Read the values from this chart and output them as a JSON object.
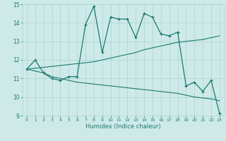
{
  "xlabel": "Humidex (Indice chaleur)",
  "x": [
    0,
    1,
    2,
    3,
    4,
    5,
    6,
    7,
    8,
    9,
    10,
    11,
    12,
    13,
    14,
    15,
    16,
    17,
    18,
    19,
    20,
    21,
    22,
    23
  ],
  "y_main": [
    11.5,
    12.0,
    11.3,
    11.0,
    10.9,
    11.1,
    11.1,
    13.9,
    14.9,
    12.4,
    14.3,
    14.2,
    14.2,
    13.2,
    14.5,
    14.3,
    13.4,
    13.3,
    13.5,
    10.6,
    10.8,
    10.3,
    10.9,
    9.1
  ],
  "y_upper": [
    11.5,
    11.55,
    11.6,
    11.65,
    11.7,
    11.75,
    11.8,
    11.85,
    11.9,
    12.0,
    12.1,
    12.2,
    12.3,
    12.4,
    12.55,
    12.65,
    12.75,
    12.85,
    12.95,
    13.0,
    13.05,
    13.1,
    13.2,
    13.3
  ],
  "y_lower": [
    11.5,
    11.4,
    11.3,
    11.1,
    11.0,
    10.9,
    10.8,
    10.75,
    10.7,
    10.65,
    10.6,
    10.55,
    10.5,
    10.45,
    10.4,
    10.35,
    10.3,
    10.25,
    10.2,
    10.1,
    10.0,
    9.95,
    9.9,
    9.8
  ],
  "ylim": [
    9,
    15
  ],
  "yticks": [
    9,
    10,
    11,
    12,
    13,
    14,
    15
  ],
  "xticks": [
    0,
    1,
    2,
    3,
    4,
    5,
    6,
    7,
    8,
    9,
    10,
    11,
    12,
    13,
    14,
    15,
    16,
    17,
    18,
    19,
    20,
    21,
    22,
    23
  ],
  "line_color": "#1a7a6e",
  "bg_color": "#ceeae8",
  "grid_color": "#aad4d0"
}
